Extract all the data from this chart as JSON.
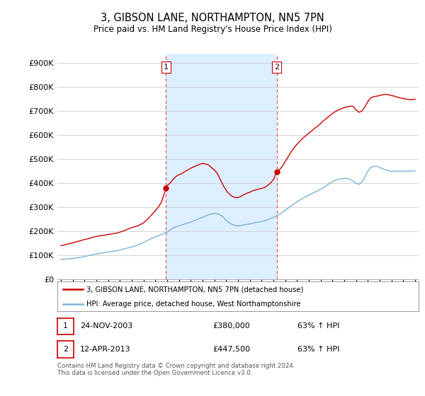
{
  "title": "3, GIBSON LANE, NORTHAMPTON, NN5 7PN",
  "subtitle": "Price paid vs. HM Land Registry's House Price Index (HPI)",
  "ylabel_ticks": [
    "£0",
    "£100K",
    "£200K",
    "£300K",
    "£400K",
    "£500K",
    "£600K",
    "£700K",
    "£800K",
    "£900K"
  ],
  "ytick_values": [
    0,
    100000,
    200000,
    300000,
    400000,
    500000,
    600000,
    700000,
    800000,
    900000
  ],
  "ylim": [
    0,
    940000
  ],
  "xlim_start": 1994.7,
  "xlim_end": 2025.3,
  "background_color": "#ffffff",
  "plot_bg_color": "#ffffff",
  "shade_color": "#ddeeff",
  "grid_color": "#cccccc",
  "red_line_color": "#cc0000",
  "blue_line_color": "#7ab3d4",
  "transaction1": {
    "date": 2003.9,
    "value": 380000,
    "label": "1"
  },
  "transaction2": {
    "date": 2013.28,
    "value": 447500,
    "label": "2"
  },
  "legend_label_red": "3, GIBSON LANE, NORTHAMPTON, NN5 7PN (detached house)",
  "legend_label_blue": "HPI: Average price, detached house, West Northamptonshire",
  "table_rows": [
    {
      "num": "1",
      "date": "24-NOV-2003",
      "price": "£380,000",
      "change": "63% ↑ HPI"
    },
    {
      "num": "2",
      "date": "12-APR-2013",
      "price": "£447,500",
      "change": "63% ↑ HPI"
    }
  ],
  "footer": "Contains HM Land Registry data © Crown copyright and database right 2024.\nThis data is licensed under the Open Government Licence v3.0.",
  "red_x": [
    1995.0,
    1995.25,
    1995.5,
    1995.75,
    1996.0,
    1996.25,
    1996.5,
    1996.75,
    1997.0,
    1997.25,
    1997.5,
    1997.75,
    1998.0,
    1998.25,
    1998.5,
    1998.75,
    1999.0,
    1999.25,
    1999.5,
    1999.75,
    2000.0,
    2000.25,
    2000.5,
    2000.75,
    2001.0,
    2001.25,
    2001.5,
    2001.75,
    2002.0,
    2002.25,
    2002.5,
    2002.75,
    2003.0,
    2003.25,
    2003.5,
    2003.75,
    2003.9,
    2004.0,
    2004.25,
    2004.5,
    2004.75,
    2005.0,
    2005.25,
    2005.5,
    2005.75,
    2006.0,
    2006.25,
    2006.5,
    2006.75,
    2007.0,
    2007.25,
    2007.5,
    2007.75,
    2008.0,
    2008.25,
    2008.5,
    2008.75,
    2009.0,
    2009.25,
    2009.5,
    2009.75,
    2010.0,
    2010.25,
    2010.5,
    2010.75,
    2011.0,
    2011.25,
    2011.5,
    2011.75,
    2012.0,
    2012.25,
    2012.5,
    2012.75,
    2013.0,
    2013.28,
    2013.5,
    2013.75,
    2014.0,
    2014.25,
    2014.5,
    2014.75,
    2015.0,
    2015.25,
    2015.5,
    2015.75,
    2016.0,
    2016.25,
    2016.5,
    2016.75,
    2017.0,
    2017.25,
    2017.5,
    2017.75,
    2018.0,
    2018.25,
    2018.5,
    2018.75,
    2019.0,
    2019.25,
    2019.5,
    2019.75,
    2020.0,
    2020.25,
    2020.5,
    2020.75,
    2021.0,
    2021.25,
    2021.5,
    2021.75,
    2022.0,
    2022.25,
    2022.5,
    2022.75,
    2023.0,
    2023.25,
    2023.5,
    2023.75,
    2024.0,
    2024.25,
    2024.5,
    2024.75,
    2025.0
  ],
  "red_y": [
    140000,
    142000,
    145000,
    148000,
    152000,
    155000,
    158000,
    162000,
    165000,
    168000,
    172000,
    175000,
    178000,
    180000,
    182000,
    184000,
    186000,
    188000,
    190000,
    192000,
    196000,
    200000,
    205000,
    210000,
    215000,
    218000,
    222000,
    228000,
    235000,
    245000,
    258000,
    272000,
    285000,
    300000,
    320000,
    355000,
    380000,
    390000,
    400000,
    415000,
    428000,
    435000,
    440000,
    448000,
    455000,
    462000,
    468000,
    473000,
    478000,
    482000,
    480000,
    476000,
    465000,
    455000,
    440000,
    415000,
    390000,
    370000,
    355000,
    345000,
    340000,
    340000,
    345000,
    352000,
    358000,
    362000,
    368000,
    372000,
    375000,
    378000,
    382000,
    390000,
    400000,
    415000,
    447500,
    455000,
    470000,
    490000,
    510000,
    530000,
    548000,
    562000,
    575000,
    588000,
    598000,
    608000,
    618000,
    628000,
    638000,
    648000,
    660000,
    670000,
    680000,
    690000,
    698000,
    705000,
    710000,
    715000,
    718000,
    720000,
    720000,
    705000,
    695000,
    700000,
    718000,
    740000,
    755000,
    760000,
    762000,
    765000,
    768000,
    770000,
    768000,
    765000,
    762000,
    758000,
    755000,
    752000,
    750000,
    748000,
    748000,
    750000
  ],
  "blue_x": [
    1995.0,
    1995.25,
    1995.5,
    1995.75,
    1996.0,
    1996.25,
    1996.5,
    1996.75,
    1997.0,
    1997.25,
    1997.5,
    1997.75,
    1998.0,
    1998.25,
    1998.5,
    1998.75,
    1999.0,
    1999.25,
    1999.5,
    1999.75,
    2000.0,
    2000.25,
    2000.5,
    2000.75,
    2001.0,
    2001.25,
    2001.5,
    2001.75,
    2002.0,
    2002.25,
    2002.5,
    2002.75,
    2003.0,
    2003.25,
    2003.5,
    2003.75,
    2004.0,
    2004.25,
    2004.5,
    2004.75,
    2005.0,
    2005.25,
    2005.5,
    2005.75,
    2006.0,
    2006.25,
    2006.5,
    2006.75,
    2007.0,
    2007.25,
    2007.5,
    2007.75,
    2008.0,
    2008.25,
    2008.5,
    2008.75,
    2009.0,
    2009.25,
    2009.5,
    2009.75,
    2010.0,
    2010.25,
    2010.5,
    2010.75,
    2011.0,
    2011.25,
    2011.5,
    2011.75,
    2012.0,
    2012.25,
    2012.5,
    2012.75,
    2013.0,
    2013.25,
    2013.5,
    2013.75,
    2014.0,
    2014.25,
    2014.5,
    2014.75,
    2015.0,
    2015.25,
    2015.5,
    2015.75,
    2016.0,
    2016.25,
    2016.5,
    2016.75,
    2017.0,
    2017.25,
    2017.5,
    2017.75,
    2018.0,
    2018.25,
    2018.5,
    2018.75,
    2019.0,
    2019.25,
    2019.5,
    2019.75,
    2020.0,
    2020.25,
    2020.5,
    2020.75,
    2021.0,
    2021.25,
    2021.5,
    2021.75,
    2022.0,
    2022.25,
    2022.5,
    2022.75,
    2023.0,
    2023.25,
    2023.5,
    2023.75,
    2024.0,
    2024.25,
    2024.5,
    2024.75,
    2025.0
  ],
  "blue_y": [
    82000,
    83000,
    84000,
    85000,
    87000,
    88000,
    90000,
    92000,
    95000,
    97000,
    100000,
    102000,
    105000,
    107000,
    109000,
    111000,
    113000,
    115000,
    117000,
    119000,
    122000,
    125000,
    128000,
    131000,
    134000,
    138000,
    143000,
    148000,
    153000,
    159000,
    165000,
    171000,
    176000,
    181000,
    186000,
    191000,
    197000,
    205000,
    212000,
    218000,
    222000,
    226000,
    230000,
    234000,
    238000,
    243000,
    248000,
    253000,
    258000,
    263000,
    268000,
    272000,
    274000,
    272000,
    268000,
    258000,
    245000,
    235000,
    228000,
    224000,
    222000,
    224000,
    226000,
    228000,
    230000,
    233000,
    236000,
    238000,
    240000,
    243000,
    247000,
    252000,
    258000,
    263000,
    270000,
    278000,
    288000,
    296000,
    305000,
    314000,
    322000,
    330000,
    337000,
    344000,
    350000,
    356000,
    362000,
    368000,
    375000,
    382000,
    390000,
    398000,
    406000,
    412000,
    416000,
    418000,
    420000,
    420000,
    415000,
    410000,
    400000,
    395000,
    405000,
    425000,
    450000,
    465000,
    470000,
    470000,
    465000,
    460000,
    455000,
    452000,
    450000,
    450000,
    450000,
    450000,
    450000,
    450000,
    450000,
    450000,
    452000
  ]
}
